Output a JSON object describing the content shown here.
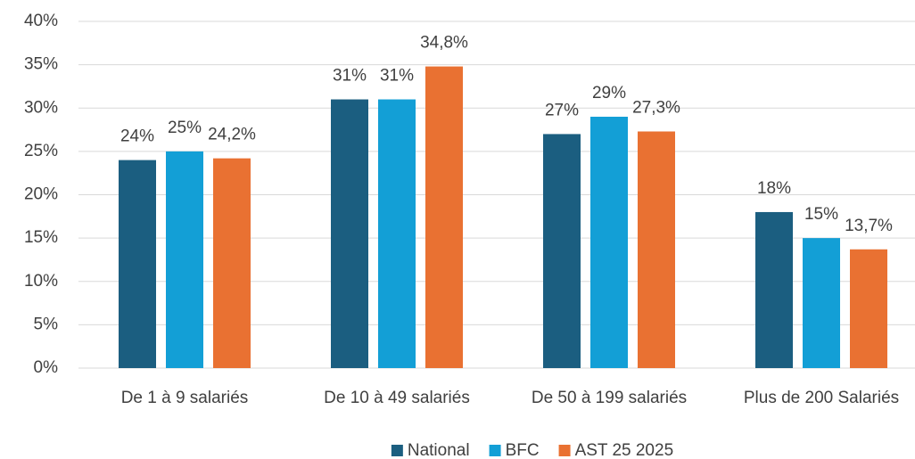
{
  "chart_data": {
    "type": "bar",
    "categories": [
      "De 1 à 9 salariés",
      "De 10 à 49 salariés",
      "De 50 à 199 salariés",
      "Plus de 200 Salariés"
    ],
    "series": [
      {
        "name": "National",
        "color": "#1b5e80",
        "values": [
          24,
          31,
          27,
          18
        ],
        "value_labels": [
          "24%",
          "31%",
          "27%",
          "18%"
        ]
      },
      {
        "name": "BFC",
        "color": "#139fd6",
        "values": [
          25,
          31,
          29,
          15
        ],
        "value_labels": [
          "25%",
          "31%",
          "29%",
          "15%"
        ]
      },
      {
        "name": "AST 25 2025",
        "color": "#e97132",
        "values": [
          24.2,
          34.8,
          27.3,
          13.7
        ],
        "value_labels": [
          "24,2%",
          "34,8%",
          "27,3%",
          "13,7%"
        ]
      }
    ],
    "ylim": [
      0,
      40
    ],
    "yticks": [
      {
        "value": 0,
        "label": "0%"
      },
      {
        "value": 5,
        "label": "5%"
      },
      {
        "value": 10,
        "label": "10%"
      },
      {
        "value": 15,
        "label": "15%"
      },
      {
        "value": 20,
        "label": "20%"
      },
      {
        "value": 25,
        "label": "25%"
      },
      {
        "value": 30,
        "label": "30%"
      },
      {
        "value": 35,
        "label": "35%"
      },
      {
        "value": 40,
        "label": "40%"
      }
    ],
    "grid": true,
    "legend": "bottom"
  }
}
